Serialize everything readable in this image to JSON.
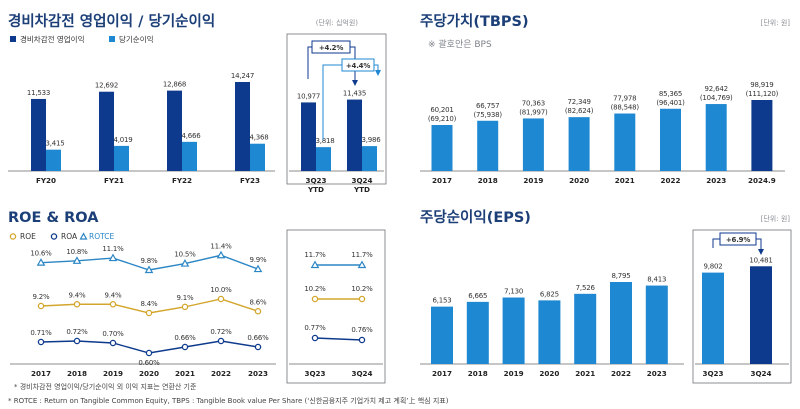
{
  "colors": {
    "navy": "#0d3a8c",
    "blue": "#1f88d2",
    "gold": "#d3a52b",
    "teal": "#2b86c5",
    "title": "#1c3f78"
  },
  "titles": {
    "op": "경비차감전 영업이익 / 당기순이익",
    "tbps": "주당가치(TBPS)",
    "roe": "ROE & ROA",
    "eps": "주당순이익(EPS)"
  },
  "units": {
    "op": "(단위: 십억원)",
    "tbps": "[단위: 원]",
    "eps": "[단위: 원]"
  },
  "tbps_sub": "※ 괄호안은 BPS",
  "footnotes": [
    "* 경비차감전 영업이익/당기순이익 외 이익 지표는 연환산 기준",
    "* ROTCE : Return on Tangible Common Equity, TBPS : Tangible Book value Per Share (‘신한금융지주 기업가치 제고 계획’上 핵심 지표)"
  ],
  "chart_data": [
    {
      "id": "op",
      "type": "bar",
      "title": "경비차감전 영업이익 / 당기순이익",
      "unit": "(단위: 십억원)",
      "categories": [
        "FY20",
        "FY21",
        "FY22",
        "FY23"
      ],
      "series": [
        {
          "name": "경비차감전 영업이익",
          "values": [
            11533,
            12692,
            12868,
            14247
          ],
          "labels": [
            "11,533",
            "12,692",
            "12,868",
            "14,247"
          ]
        },
        {
          "name": "당기순이익",
          "values": [
            3415,
            4019,
            4666,
            4368
          ],
          "labels": [
            "3,415",
            "4,019",
            "4,666",
            "4,368"
          ]
        }
      ],
      "ylim": [
        0,
        15000
      ]
    },
    {
      "id": "op_ytd",
      "type": "bar",
      "categories": [
        "3Q23 YTD",
        "3Q24 YTD"
      ],
      "category_lines": [
        [
          "3Q23",
          "YTD"
        ],
        [
          "3Q24",
          "YTD"
        ]
      ],
      "series": [
        {
          "name": "경비차감전 영업이익",
          "values": [
            10977,
            11435
          ],
          "labels": [
            "10,977",
            "11,435"
          ]
        },
        {
          "name": "당기순이익",
          "values": [
            3818,
            3986
          ],
          "labels": [
            "3,818",
            "3,986"
          ]
        }
      ],
      "annotations": [
        "+4.2%",
        "+4.4%"
      ],
      "ylim": [
        0,
        15000
      ]
    },
    {
      "id": "tbps",
      "type": "bar",
      "title": "주당가치(TBPS)",
      "unit": "[단위: 원]",
      "categories": [
        "2017",
        "2018",
        "2019",
        "2020",
        "2021",
        "2022",
        "2023",
        "2024.9"
      ],
      "series": [
        {
          "name": "TBPS",
          "values": [
            60201,
            66757,
            70363,
            72349,
            77978,
            85365,
            92642,
            98919
          ]
        }
      ],
      "labels": [
        "60,201",
        "66,757",
        "70,363",
        "72,349",
        "77,978",
        "85,365",
        "92,642",
        "98,919"
      ],
      "bps_labels": [
        "(69,210)",
        "(75,938)",
        "(81,997)",
        "(82,624)",
        "(88,548)",
        "(96,401)",
        "(104,769)",
        "(111,120)"
      ]
    },
    {
      "id": "roe",
      "type": "line",
      "title": "ROE & ROA",
      "categories": [
        "2017",
        "2018",
        "2019",
        "2020",
        "2021",
        "2022",
        "2023"
      ],
      "series": [
        {
          "name": "ROE",
          "values": [
            9.2,
            9.4,
            9.4,
            8.4,
            9.1,
            10.0,
            8.6
          ],
          "labels": [
            "9.2%",
            "9.4%",
            "9.4%",
            "8.4%",
            "9.1%",
            "10.0%",
            "8.6%"
          ]
        },
        {
          "name": "ROA",
          "values": [
            0.71,
            0.72,
            0.7,
            0.6,
            0.66,
            0.72,
            0.66
          ],
          "labels": [
            "0.71%",
            "0.72%",
            "0.70%",
            "0.60%",
            "0.66%",
            "0.72%",
            "0.66%"
          ]
        },
        {
          "name": "ROTCE",
          "values": [
            10.6,
            10.8,
            11.1,
            9.8,
            10.5,
            11.4,
            9.9
          ],
          "labels": [
            "10.6%",
            "10.8%",
            "11.1%",
            "9.8%",
            "10.5%",
            "11.4%",
            "9.9%"
          ]
        }
      ]
    },
    {
      "id": "roe_q",
      "type": "line",
      "categories": [
        "3Q23",
        "3Q24"
      ],
      "series": [
        {
          "name": "ROTCE",
          "values": [
            11.7,
            11.7
          ],
          "labels": [
            "11.7%",
            "11.7%"
          ]
        },
        {
          "name": "ROE",
          "values": [
            10.2,
            10.2
          ],
          "labels": [
            "10.2%",
            "10.2%"
          ]
        },
        {
          "name": "ROA",
          "values": [
            0.77,
            0.76
          ],
          "labels": [
            "0.77%",
            "0.76%"
          ]
        }
      ]
    },
    {
      "id": "eps",
      "type": "bar",
      "title": "주당순이익(EPS)",
      "unit": "[단위: 원]",
      "categories": [
        "2017",
        "2018",
        "2019",
        "2020",
        "2021",
        "2022",
        "2023"
      ],
      "series": [
        {
          "name": "EPS",
          "values": [
            6153,
            6665,
            7130,
            6825,
            7526,
            8795,
            8413
          ]
        }
      ],
      "labels": [
        "6,153",
        "6,665",
        "7,130",
        "6,825",
        "7,526",
        "8,795",
        "8,413"
      ]
    },
    {
      "id": "eps_q",
      "type": "bar",
      "categories": [
        "3Q23",
        "3Q24"
      ],
      "series": [
        {
          "name": "EPS",
          "values": [
            9802,
            10481
          ]
        }
      ],
      "labels": [
        "9,802",
        "10,481"
      ],
      "annotations": [
        "+6.9%"
      ]
    }
  ]
}
